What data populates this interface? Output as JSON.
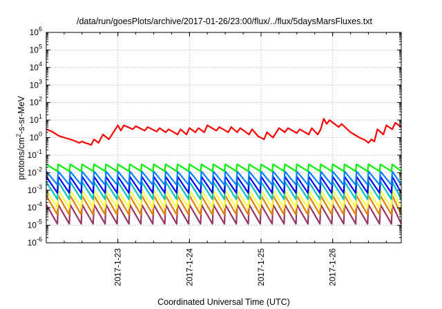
{
  "chart_data": {
    "type": "line",
    "title": "/data/run/goesPlots/archive/2017-01-26/23:00/flux/../flux/5daysMarsFluxes.txt",
    "xlabel": "Coordinated Universal Time (UTC)",
    "ylabel": {
      "pre": "protons/cm",
      "sup": "2",
      "post": "-s-sr-MeV"
    },
    "y_scale": "log",
    "ylim_exponent": [
      -6,
      6
    ],
    "xlim_days": [
      "2017-01-22",
      "2017-01-26 23:00"
    ],
    "x_ticks": [
      "2017-1-23",
      "2017-1-24",
      "2017-1-25",
      "2017-1-26"
    ],
    "grid": true,
    "series": [
      {
        "color": "#ff0000",
        "kind": "irregular",
        "points": [
          [
            "2017-01-22 00:00",
            3.0
          ],
          [
            "2017-01-22 02:00",
            2.2
          ],
          [
            "2017-01-22 04:00",
            1.3
          ],
          [
            "2017-01-22 06:00",
            1.0
          ],
          [
            "2017-01-22 08:00",
            0.8
          ],
          [
            "2017-01-22 09:00",
            0.7
          ],
          [
            "2017-01-22 10:00",
            0.6
          ],
          [
            "2017-01-22 11:00",
            0.5
          ],
          [
            "2017-01-22 12:00",
            0.6
          ],
          [
            "2017-01-22 13:00",
            0.5
          ],
          [
            "2017-01-22 14:00",
            0.45
          ],
          [
            "2017-01-22 15:00",
            0.38
          ],
          [
            "2017-01-22 16:00",
            0.8
          ],
          [
            "2017-01-22 17:30",
            0.5
          ],
          [
            "2017-01-22 19:00",
            1.5
          ],
          [
            "2017-01-22 21:00",
            0.8
          ],
          [
            "2017-01-23 00:00",
            5.0
          ],
          [
            "2017-01-23 01:00",
            2.5
          ],
          [
            "2017-01-23 02:00",
            5.0
          ],
          [
            "2017-01-23 05:00",
            3.0
          ],
          [
            "2017-01-23 06:00",
            4.5
          ],
          [
            "2017-01-23 09:00",
            2.5
          ],
          [
            "2017-01-23 10:00",
            4.0
          ],
          [
            "2017-01-23 13:00",
            2.2
          ],
          [
            "2017-01-23 14:00",
            3.5
          ],
          [
            "2017-01-23 16:00",
            2.0
          ],
          [
            "2017-01-23 17:00",
            3.0
          ],
          [
            "2017-01-23 20:00",
            1.5
          ],
          [
            "2017-01-23 21:00",
            3.0
          ],
          [
            "2017-01-23 23:00",
            1.5
          ],
          [
            "2017-01-24 00:00",
            3.5
          ],
          [
            "2017-01-24 02:00",
            2.0
          ],
          [
            "2017-01-24 03:00",
            3.5
          ],
          [
            "2017-01-24 05:00",
            2.0
          ],
          [
            "2017-01-24 06:00",
            5.0
          ],
          [
            "2017-01-24 09:00",
            2.5
          ],
          [
            "2017-01-24 10:00",
            4.0
          ],
          [
            "2017-01-24 13:00",
            2.0
          ],
          [
            "2017-01-24 14:00",
            4.0
          ],
          [
            "2017-01-24 16:00",
            2.0
          ],
          [
            "2017-01-24 17:00",
            3.5
          ],
          [
            "2017-01-24 20:00",
            1.5
          ],
          [
            "2017-01-24 21:00",
            3.0
          ],
          [
            "2017-01-24 23:00",
            1.2
          ],
          [
            "2017-01-25 01:00",
            0.8
          ],
          [
            "2017-01-25 02:00",
            2.0
          ],
          [
            "2017-01-25 04:00",
            1.0
          ],
          [
            "2017-01-25 06:00",
            3.5
          ],
          [
            "2017-01-25 08:00",
            2.0
          ],
          [
            "2017-01-25 09:00",
            3.5
          ],
          [
            "2017-01-25 12:00",
            1.8
          ],
          [
            "2017-01-25 13:00",
            3.0
          ],
          [
            "2017-01-25 16:00",
            1.5
          ],
          [
            "2017-01-25 17:00",
            3.5
          ],
          [
            "2017-01-25 19:00",
            1.5
          ],
          [
            "2017-01-25 20:00",
            3.0
          ],
          [
            "2017-01-25 21:00",
            12.0
          ],
          [
            "2017-01-25 22:00",
            6.0
          ],
          [
            "2017-01-25 23:00",
            10.0
          ],
          [
            "2017-01-26 02:00",
            4.0
          ],
          [
            "2017-01-26 03:00",
            6.0
          ],
          [
            "2017-01-26 06:00",
            2.0
          ],
          [
            "2017-01-26 09:00",
            1.0
          ],
          [
            "2017-01-26 11:00",
            0.7
          ],
          [
            "2017-01-26 12:00",
            0.5
          ],
          [
            "2017-01-26 13:00",
            0.8
          ],
          [
            "2017-01-26 14:00",
            0.6
          ],
          [
            "2017-01-26 15:00",
            3.0
          ],
          [
            "2017-01-26 17:00",
            1.5
          ],
          [
            "2017-01-26 18:00",
            5.0
          ],
          [
            "2017-01-26 20:00",
            3.0
          ],
          [
            "2017-01-26 21:00",
            7.0
          ],
          [
            "2017-01-26 23:00",
            4.0
          ]
        ]
      },
      {
        "color": "#00ee00",
        "kind": "sawtooth",
        "peak": 0.03,
        "trough": 0.012,
        "period_hours": 4
      },
      {
        "color": "#0080ff",
        "kind": "sawtooth",
        "peak": 0.012,
        "trough": 0.002,
        "period_hours": 4
      },
      {
        "color": "#0000ff",
        "kind": "sawtooth",
        "peak": 0.006,
        "trough": 0.0007,
        "period_hours": 4
      },
      {
        "color": "#00c0c0",
        "kind": "sawtooth",
        "peak": 0.003,
        "trough": 0.0003,
        "period_hours": 4
      },
      {
        "color": "#ffff40",
        "kind": "sawtooth",
        "peak": 0.001,
        "trough": 0.0001,
        "period_hours": 4
      },
      {
        "color": "#e08000",
        "kind": "sawtooth",
        "peak": 0.0005,
        "trough": 4e-05,
        "period_hours": 4
      },
      {
        "color": "#993366",
        "kind": "sawtooth",
        "peak": 0.00015,
        "trough": 1.2e-05,
        "period_hours": 4
      }
    ]
  }
}
